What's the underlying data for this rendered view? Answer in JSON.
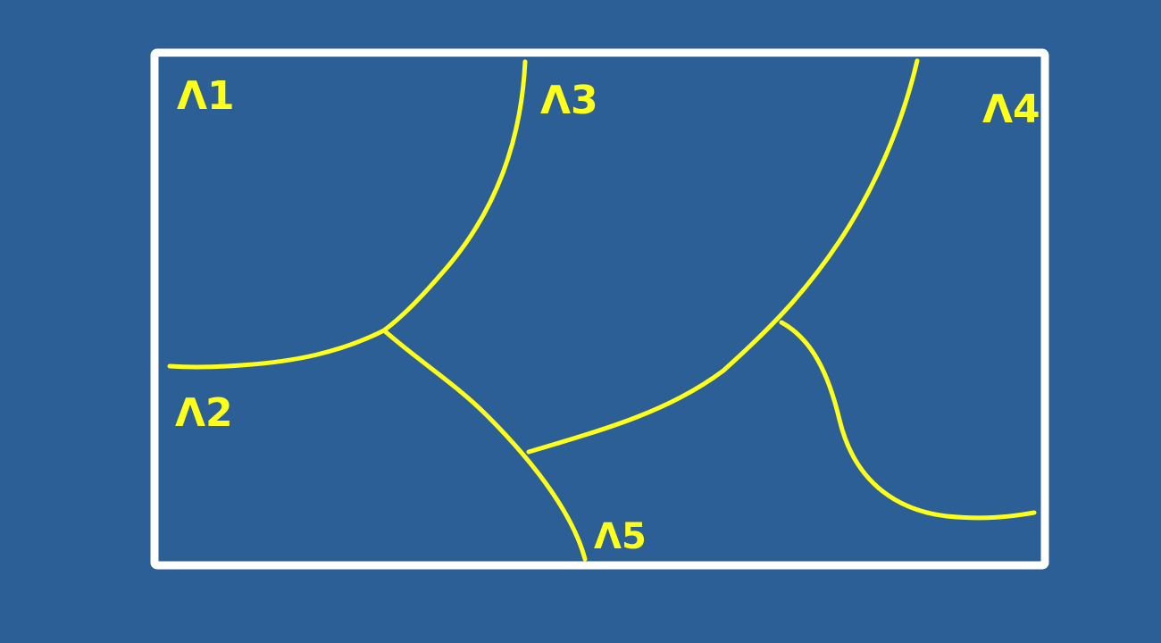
{
  "colors": {
    "background": "#2b5f96",
    "frame": "#ffffff",
    "ink": "#ffff1a"
  },
  "regions": {
    "r1": "Λ1",
    "r2": "Λ2",
    "r3": "Λ3",
    "r4": "Λ4",
    "r5": "Λ5"
  }
}
